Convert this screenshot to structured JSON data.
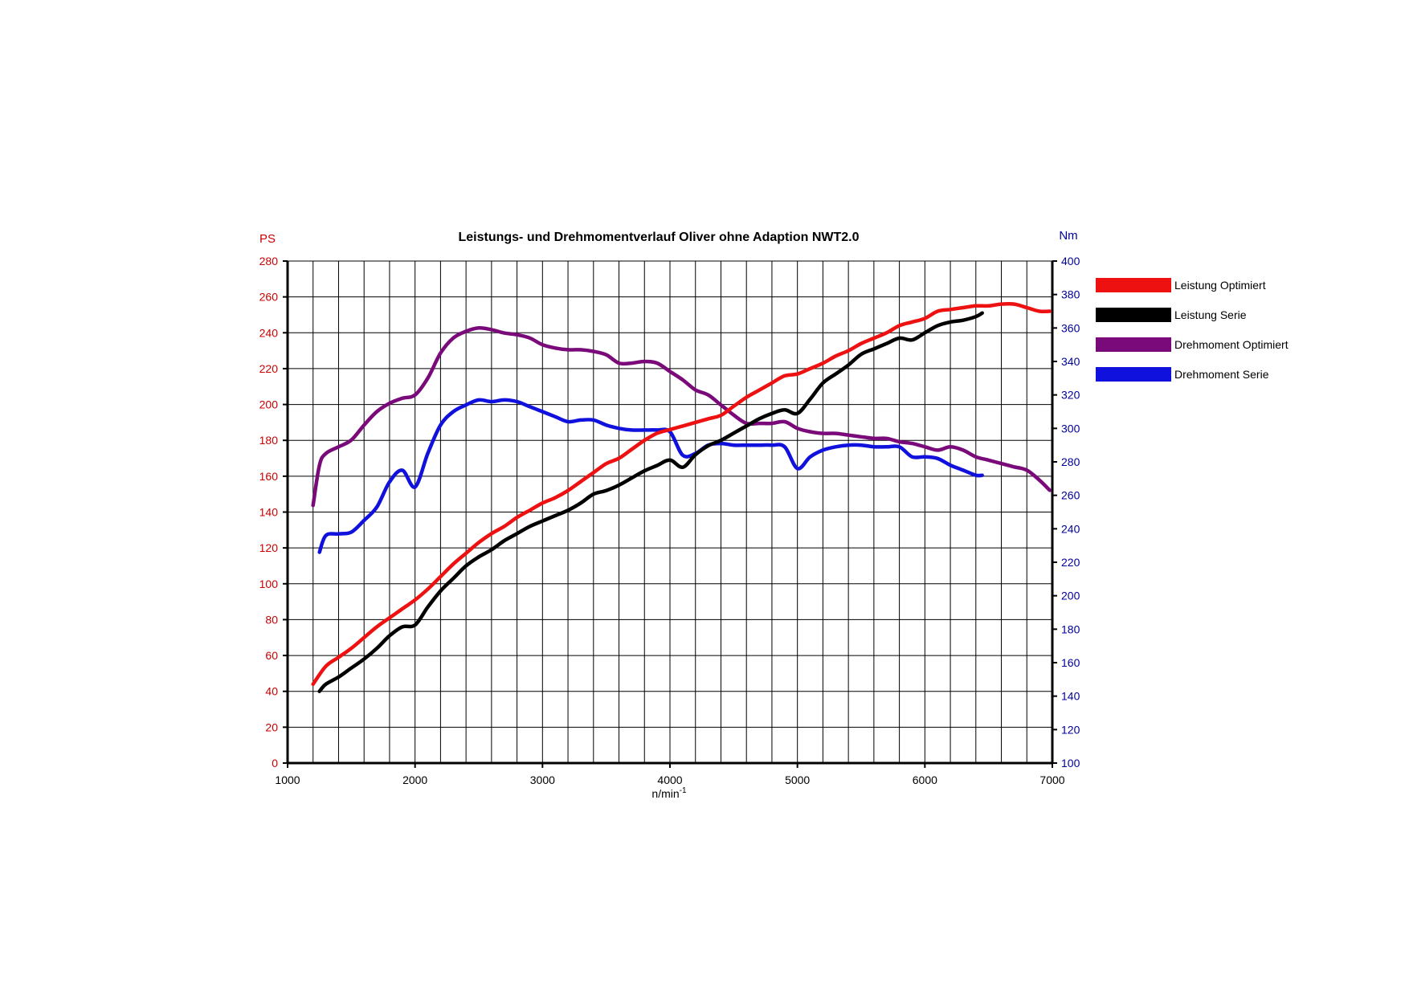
{
  "chart_data": {
    "type": "line",
    "title": "Leistungs- und Drehmomentverlauf Oliver ohne Adaption NWT2.0",
    "xlabel": "n/min",
    "xlabel_sup": "-1",
    "ylabel_left": "PS",
    "ylabel_right": "Nm",
    "xlim": [
      1000,
      7000
    ],
    "ylim_left": [
      0,
      280
    ],
    "ylim_right": [
      100,
      400
    ],
    "xticks": [
      1000,
      2000,
      3000,
      4000,
      5000,
      6000,
      7000
    ],
    "yticks_left": [
      0,
      20,
      40,
      60,
      80,
      100,
      120,
      140,
      160,
      180,
      200,
      220,
      240,
      260,
      280
    ],
    "yticks_right": [
      100,
      120,
      140,
      160,
      180,
      200,
      220,
      240,
      260,
      280,
      300,
      320,
      340,
      360,
      380,
      400
    ],
    "grid": true,
    "legend_position": "right",
    "colors": {
      "leistung_optimiert": "#ee1111",
      "leistung_serie": "#000000",
      "drehmoment_optimiert": "#7a0a7a",
      "drehmoment_serie": "#1111dd",
      "left_axis": "#cc0000",
      "right_axis": "#000099"
    },
    "series": [
      {
        "name": "Leistung Optimiert",
        "axis": "left",
        "color": "#ee1111",
        "x": [
          1200,
          1300,
          1400,
          1500,
          1600,
          1700,
          1800,
          1900,
          2000,
          2100,
          2200,
          2300,
          2400,
          2500,
          2600,
          2700,
          2800,
          2900,
          3000,
          3100,
          3200,
          3300,
          3400,
          3500,
          3600,
          3700,
          3800,
          3900,
          4000,
          4100,
          4200,
          4300,
          4400,
          4500,
          4600,
          4700,
          4800,
          4900,
          5000,
          5100,
          5200,
          5300,
          5400,
          5500,
          5600,
          5700,
          5800,
          5900,
          6000,
          6100,
          6200,
          6300,
          6400,
          6500,
          6600,
          6700,
          6800,
          6900,
          6980
        ],
        "y": [
          44,
          54,
          59,
          64,
          70,
          76,
          81,
          86,
          91,
          97,
          104,
          111,
          117,
          123,
          128,
          132,
          137,
          141,
          145,
          148,
          152,
          157,
          162,
          167,
          170,
          175,
          180,
          184,
          186,
          188,
          190,
          192,
          194,
          199,
          204,
          208,
          212,
          216,
          217,
          220,
          223,
          227,
          230,
          234,
          237,
          240,
          244,
          246,
          248,
          252,
          253,
          254,
          255,
          255,
          256,
          256,
          254,
          252,
          252
        ]
      },
      {
        "name": "Leistung Serie",
        "axis": "left",
        "color": "#000000",
        "x": [
          1250,
          1300,
          1400,
          1500,
          1600,
          1700,
          1800,
          1900,
          2000,
          2100,
          2200,
          2300,
          2400,
          2500,
          2600,
          2700,
          2800,
          2900,
          3000,
          3100,
          3200,
          3300,
          3400,
          3500,
          3600,
          3700,
          3800,
          3900,
          4000,
          4100,
          4200,
          4300,
          4400,
          4500,
          4600,
          4700,
          4800,
          4900,
          5000,
          5100,
          5200,
          5300,
          5400,
          5500,
          5600,
          5700,
          5800,
          5900,
          6000,
          6100,
          6200,
          6300,
          6400,
          6450
        ],
        "y": [
          40,
          44,
          48,
          53,
          58,
          64,
          71,
          76,
          77,
          87,
          96,
          103,
          110,
          115,
          119,
          124,
          128,
          132,
          135,
          138,
          141,
          145,
          150,
          152,
          155,
          159,
          163,
          166,
          169,
          165,
          172,
          177,
          180,
          184,
          188,
          192,
          195,
          197,
          195,
          203,
          212,
          217,
          222,
          228,
          231,
          234,
          237,
          236,
          240,
          244,
          246,
          247,
          249,
          251
        ]
      },
      {
        "name": "Drehmoment Optimiert",
        "axis": "right",
        "color": "#7a0a7a",
        "x": [
          1200,
          1250,
          1300,
          1400,
          1500,
          1600,
          1700,
          1800,
          1900,
          2000,
          2100,
          2200,
          2300,
          2400,
          2500,
          2600,
          2700,
          2800,
          2900,
          3000,
          3100,
          3200,
          3300,
          3400,
          3500,
          3600,
          3700,
          3800,
          3900,
          4000,
          4100,
          4200,
          4300,
          4400,
          4500,
          4600,
          4700,
          4800,
          4900,
          5000,
          5100,
          5200,
          5300,
          5400,
          5500,
          5600,
          5700,
          5800,
          5900,
          6000,
          6100,
          6200,
          6300,
          6400,
          6500,
          6600,
          6700,
          6800,
          6900,
          6980
        ],
        "y": [
          254,
          278,
          285,
          289,
          293,
          302,
          310,
          315,
          318,
          320,
          330,
          345,
          354,
          358,
          360,
          359,
          357,
          356,
          354,
          350,
          348,
          347,
          347,
          346,
          344,
          339,
          339,
          340,
          339,
          334,
          329,
          323,
          320,
          314,
          308,
          303,
          303,
          303,
          304,
          300,
          298,
          297,
          297,
          296,
          295,
          294,
          294,
          292,
          291,
          289,
          287,
          289,
          287,
          283,
          281,
          279,
          277,
          275,
          269,
          263
        ]
      },
      {
        "name": "Drehmoment Serie",
        "axis": "right",
        "color": "#1111dd",
        "x": [
          1250,
          1300,
          1400,
          1500,
          1600,
          1700,
          1800,
          1900,
          2000,
          2100,
          2200,
          2300,
          2400,
          2500,
          2600,
          2700,
          2800,
          2900,
          3000,
          3100,
          3200,
          3300,
          3400,
          3500,
          3600,
          3700,
          3800,
          3900,
          4000,
          4100,
          4200,
          4300,
          4400,
          4500,
          4600,
          4700,
          4800,
          4900,
          5000,
          5100,
          5200,
          5300,
          5400,
          5500,
          5600,
          5700,
          5800,
          5900,
          6000,
          6100,
          6200,
          6300,
          6400,
          6450
        ],
        "y": [
          226,
          236,
          237,
          238,
          245,
          253,
          268,
          275,
          265,
          285,
          302,
          310,
          314,
          317,
          316,
          317,
          316,
          313,
          310,
          307,
          304,
          305,
          305,
          302,
          300,
          299,
          299,
          299,
          298,
          284,
          285,
          290,
          291,
          290,
          290,
          290,
          290,
          289,
          276,
          283,
          287,
          289,
          290,
          290,
          289,
          289,
          289,
          283,
          283,
          282,
          278,
          275,
          272,
          272
        ]
      }
    ],
    "legend": [
      {
        "label": "Leistung Optimiert",
        "color": "#ee1111"
      },
      {
        "label": "Leistung Serie",
        "color": "#000000"
      },
      {
        "label": "Drehmoment Optimiert",
        "color": "#7a0a7a"
      },
      {
        "label": "Drehmoment Serie",
        "color": "#1111dd"
      }
    ]
  }
}
